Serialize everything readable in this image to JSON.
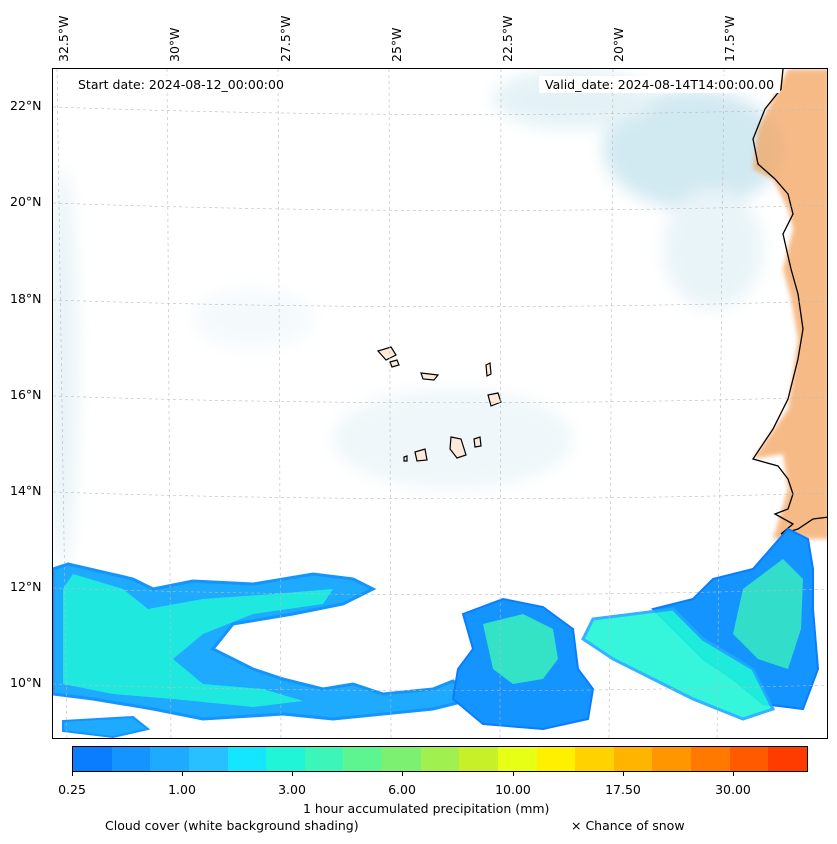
{
  "start_date": "Start date: 2024-08-12_00:00:00",
  "valid_date": "Valid_date: 2024-08-14T14:00:00.00",
  "lon_labels": [
    "32.5°W",
    "30°W",
    "27.5°W",
    "25°W",
    "22.5°W",
    "20°W",
    "17.5°W"
  ],
  "lat_labels": [
    "22°N",
    "20°N",
    "18°N",
    "16°N",
    "14°N",
    "12°N",
    "10°N"
  ],
  "colorbar": {
    "colors": [
      "#0a7dff",
      "#1494ff",
      "#1eaaff",
      "#28c0ff",
      "#14e6ff",
      "#20f5d8",
      "#3cf5b8",
      "#5cf590",
      "#7cf070",
      "#a0f050",
      "#c8f028",
      "#e6ff14",
      "#fff000",
      "#ffd200",
      "#ffb400",
      "#ff9600",
      "#ff7800",
      "#ff5a00",
      "#ff3c00"
    ],
    "ticks": [
      "0.25",
      "1.00",
      "3.00",
      "6.00",
      "10.00",
      "17.50",
      "30.00"
    ],
    "label": "1 hour accumulated precipitation (mm)"
  },
  "captions": {
    "cloud": "Cloud cover (white background shading)",
    "snow": "× Chance of snow"
  },
  "colors": {
    "ocean": "#ffffff",
    "cloud": "#add8e6",
    "land_heat": "#f4a460",
    "precip_low": "#1e90ff",
    "precip_mid": "#20f0d0"
  }
}
